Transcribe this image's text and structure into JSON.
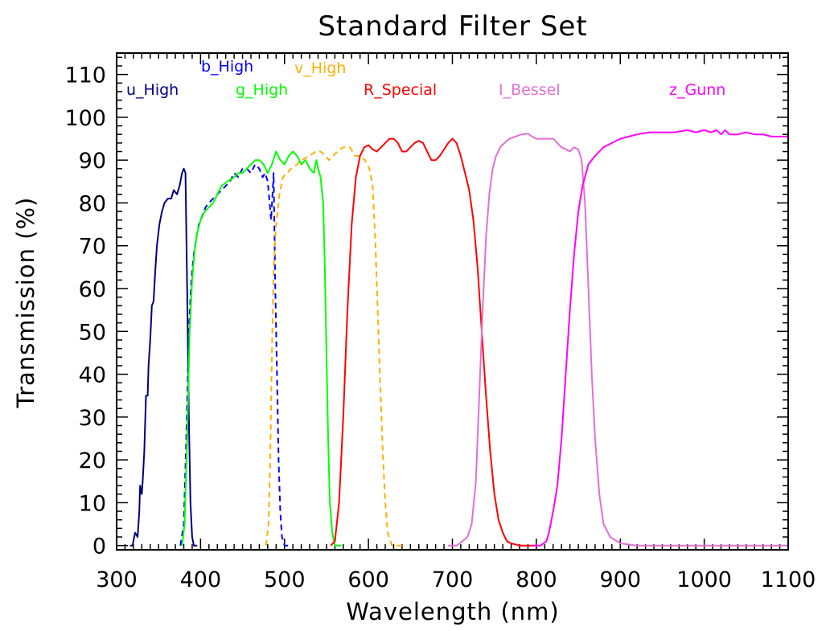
{
  "chart_data": {
    "type": "line",
    "title": "Standard Filter Set",
    "xlabel": "Wavelength (nm)",
    "ylabel": "Transmission (%)",
    "xlim": [
      300,
      1100
    ],
    "ylim": [
      -1,
      115
    ],
    "xticks": [
      "300",
      "400",
      "500",
      "600",
      "700",
      "800",
      "900",
      "1000",
      "1100"
    ],
    "yticks": [
      "0",
      "10",
      "20",
      "30",
      "40",
      "50",
      "60",
      "70",
      "80",
      "90",
      "100",
      "110"
    ],
    "grid": false,
    "series": [
      {
        "name": "u_High",
        "color": "#000080",
        "dash": false,
        "points": [
          [
            316,
            0
          ],
          [
            319,
            0
          ],
          [
            322,
            3
          ],
          [
            325,
            2
          ],
          [
            327,
            8
          ],
          [
            328,
            14
          ],
          [
            330,
            12
          ],
          [
            331,
            15
          ],
          [
            333,
            22
          ],
          [
            335,
            35
          ],
          [
            337,
            35
          ],
          [
            338,
            42
          ],
          [
            340,
            48
          ],
          [
            342,
            56
          ],
          [
            344,
            57
          ],
          [
            346,
            64
          ],
          [
            348,
            70
          ],
          [
            351,
            75
          ],
          [
            354,
            78
          ],
          [
            357,
            80
          ],
          [
            361,
            81
          ],
          [
            365,
            81
          ],
          [
            368,
            83
          ],
          [
            372,
            82
          ],
          [
            375,
            84
          ],
          [
            378,
            87
          ],
          [
            380,
            88
          ],
          [
            382,
            87
          ],
          [
            384,
            60
          ],
          [
            386,
            30
          ],
          [
            388,
            10
          ],
          [
            390,
            2
          ],
          [
            392,
            0
          ],
          [
            396,
            0
          ]
        ]
      },
      {
        "name": "b_High",
        "color": "#0000ff",
        "dash": true,
        "points": [
          [
            376,
            0
          ],
          [
            380,
            5
          ],
          [
            383,
            25
          ],
          [
            386,
            50
          ],
          [
            389,
            62
          ],
          [
            392,
            68
          ],
          [
            395,
            72
          ],
          [
            398,
            75
          ],
          [
            402,
            77
          ],
          [
            406,
            79
          ],
          [
            410,
            80
          ],
          [
            415,
            81
          ],
          [
            420,
            82
          ],
          [
            425,
            83
          ],
          [
            430,
            84
          ],
          [
            435,
            85
          ],
          [
            440,
            87
          ],
          [
            445,
            86
          ],
          [
            450,
            88
          ],
          [
            455,
            88
          ],
          [
            460,
            87
          ],
          [
            465,
            89
          ],
          [
            470,
            88
          ],
          [
            474,
            86
          ],
          [
            477,
            87
          ],
          [
            480,
            85
          ],
          [
            484,
            76
          ],
          [
            487,
            87
          ],
          [
            489,
            60
          ],
          [
            491,
            40
          ],
          [
            493,
            20
          ],
          [
            495,
            8
          ],
          [
            497,
            2
          ],
          [
            500,
            0
          ],
          [
            505,
            0
          ]
        ]
      },
      {
        "name": "g_High",
        "color": "#00ff00",
        "dash": false,
        "points": [
          [
            378,
            0
          ],
          [
            381,
            5
          ],
          [
            384,
            25
          ],
          [
            387,
            50
          ],
          [
            390,
            62
          ],
          [
            393,
            69
          ],
          [
            396,
            73
          ],
          [
            400,
            76
          ],
          [
            405,
            78
          ],
          [
            410,
            79
          ],
          [
            415,
            80
          ],
          [
            420,
            82
          ],
          [
            425,
            84
          ],
          [
            432,
            85
          ],
          [
            440,
            86
          ],
          [
            445,
            87
          ],
          [
            450,
            87
          ],
          [
            455,
            88
          ],
          [
            460,
            89
          ],
          [
            465,
            90
          ],
          [
            470,
            90
          ],
          [
            475,
            89
          ],
          [
            480,
            87
          ],
          [
            485,
            89
          ],
          [
            490,
            92
          ],
          [
            495,
            90
          ],
          [
            500,
            89
          ],
          [
            505,
            91
          ],
          [
            510,
            92
          ],
          [
            515,
            91
          ],
          [
            520,
            89
          ],
          [
            525,
            90
          ],
          [
            530,
            88
          ],
          [
            535,
            87
          ],
          [
            538,
            90
          ],
          [
            540,
            88
          ],
          [
            543,
            86
          ],
          [
            546,
            80
          ],
          [
            548,
            65
          ],
          [
            550,
            45
          ],
          [
            552,
            25
          ],
          [
            554,
            10
          ],
          [
            557,
            3
          ],
          [
            560,
            0
          ],
          [
            568,
            0
          ]
        ]
      },
      {
        "name": "v_High",
        "color": "#ffb000",
        "dash": true,
        "points": [
          [
            478,
            0
          ],
          [
            481,
            5
          ],
          [
            483,
            20
          ],
          [
            485,
            45
          ],
          [
            487,
            65
          ],
          [
            490,
            75
          ],
          [
            494,
            82
          ],
          [
            498,
            86
          ],
          [
            503,
            87
          ],
          [
            508,
            88
          ],
          [
            515,
            89
          ],
          [
            520,
            90
          ],
          [
            530,
            91
          ],
          [
            537,
            92
          ],
          [
            543,
            92
          ],
          [
            549,
            91
          ],
          [
            553,
            90
          ],
          [
            558,
            91
          ],
          [
            563,
            92
          ],
          [
            570,
            93
          ],
          [
            578,
            93
          ],
          [
            584,
            91
          ],
          [
            590,
            91
          ],
          [
            596,
            90
          ],
          [
            601,
            88
          ],
          [
            605,
            84
          ],
          [
            608,
            72
          ],
          [
            611,
            55
          ],
          [
            614,
            38
          ],
          [
            617,
            22
          ],
          [
            620,
            10
          ],
          [
            623,
            3
          ],
          [
            628,
            0
          ],
          [
            640,
            0
          ]
        ]
      },
      {
        "name": "R_Special",
        "color": "#ff0000",
        "dash": false,
        "points": [
          [
            555,
            0
          ],
          [
            560,
            1
          ],
          [
            565,
            10
          ],
          [
            570,
            30
          ],
          [
            575,
            55
          ],
          [
            580,
            75
          ],
          [
            585,
            86
          ],
          [
            590,
            91
          ],
          [
            595,
            93
          ],
          [
            600,
            93.5
          ],
          [
            605,
            92.5
          ],
          [
            610,
            92
          ],
          [
            615,
            93
          ],
          [
            620,
            94
          ],
          [
            625,
            95
          ],
          [
            630,
            95
          ],
          [
            635,
            94
          ],
          [
            640,
            92
          ],
          [
            645,
            92
          ],
          [
            650,
            93
          ],
          [
            655,
            94
          ],
          [
            660,
            94.5
          ],
          [
            665,
            94
          ],
          [
            670,
            92
          ],
          [
            675,
            90
          ],
          [
            680,
            90
          ],
          [
            685,
            91
          ],
          [
            690,
            92.5
          ],
          [
            695,
            94
          ],
          [
            700,
            95
          ],
          [
            705,
            94
          ],
          [
            710,
            91
          ],
          [
            715,
            87
          ],
          [
            720,
            83
          ],
          [
            725,
            76
          ],
          [
            730,
            65
          ],
          [
            735,
            50
          ],
          [
            740,
            35
          ],
          [
            745,
            22
          ],
          [
            750,
            12
          ],
          [
            755,
            6
          ],
          [
            760,
            3
          ],
          [
            765,
            1
          ],
          [
            770,
            0.5
          ],
          [
            780,
            0
          ],
          [
            800,
            0
          ]
        ]
      },
      {
        "name": "I_Bessel",
        "color": "#e070d6",
        "dash": false,
        "points": [
          [
            695,
            0
          ],
          [
            705,
            0
          ],
          [
            712,
            1
          ],
          [
            718,
            2
          ],
          [
            723,
            5
          ],
          [
            728,
            15
          ],
          [
            732,
            35
          ],
          [
            736,
            55
          ],
          [
            740,
            72
          ],
          [
            744,
            82
          ],
          [
            748,
            88
          ],
          [
            752,
            91
          ],
          [
            757,
            93
          ],
          [
            762,
            94
          ],
          [
            768,
            95
          ],
          [
            775,
            95.5
          ],
          [
            782,
            96
          ],
          [
            790,
            96.2
          ],
          [
            795,
            95.5
          ],
          [
            800,
            95
          ],
          [
            810,
            95
          ],
          [
            820,
            95
          ],
          [
            825,
            94
          ],
          [
            830,
            93
          ],
          [
            836,
            92.5
          ],
          [
            840,
            92
          ],
          [
            845,
            93
          ],
          [
            850,
            92.5
          ],
          [
            854,
            90
          ],
          [
            858,
            80
          ],
          [
            862,
            60
          ],
          [
            866,
            40
          ],
          [
            870,
            25
          ],
          [
            875,
            12
          ],
          [
            880,
            5
          ],
          [
            888,
            2
          ],
          [
            900,
            0.5
          ],
          [
            920,
            0
          ],
          [
            1000,
            0
          ],
          [
            1100,
            0
          ]
        ]
      },
      {
        "name": "z_Gunn",
        "color": "#ff00ff",
        "dash": false,
        "points": [
          [
            795,
            0
          ],
          [
            805,
            0
          ],
          [
            812,
            1
          ],
          [
            815,
            3
          ],
          [
            820,
            8
          ],
          [
            825,
            14
          ],
          [
            830,
            25
          ],
          [
            835,
            40
          ],
          [
            840,
            55
          ],
          [
            845,
            68
          ],
          [
            850,
            78
          ],
          [
            855,
            84
          ],
          [
            862,
            89
          ],
          [
            870,
            91
          ],
          [
            880,
            93
          ],
          [
            890,
            94
          ],
          [
            900,
            95
          ],
          [
            910,
            95.5
          ],
          [
            920,
            96
          ],
          [
            935,
            96.5
          ],
          [
            950,
            96.5
          ],
          [
            965,
            96.5
          ],
          [
            980,
            97
          ],
          [
            990,
            96.5
          ],
          [
            1000,
            97
          ],
          [
            1008,
            96.5
          ],
          [
            1015,
            97
          ],
          [
            1020,
            96
          ],
          [
            1025,
            97
          ],
          [
            1030,
            96
          ],
          [
            1040,
            96
          ],
          [
            1050,
            96.5
          ],
          [
            1060,
            96
          ],
          [
            1070,
            96
          ],
          [
            1080,
            95.5
          ],
          [
            1090,
            95.5
          ],
          [
            1100,
            95.5
          ]
        ]
      }
    ]
  }
}
